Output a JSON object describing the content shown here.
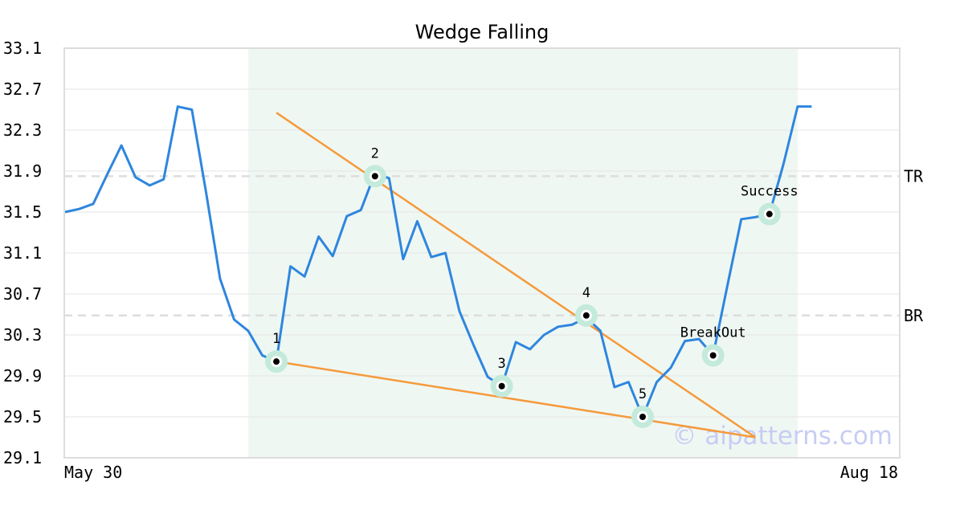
{
  "chart_data": {
    "type": "line",
    "title": "Wedge Falling",
    "watermark": "© aipatterns.com",
    "ylim": [
      29.1,
      33.1
    ],
    "yticks": [
      "33.1",
      "32.7",
      "32.3",
      "31.9",
      "31.5",
      "31.1",
      "30.7",
      "30.3",
      "29.9",
      "29.5",
      "29.1"
    ],
    "x_range": [
      0,
      56
    ],
    "x_tick_labels": [
      {
        "x": 0,
        "label": "May 30"
      },
      {
        "x": 56,
        "label": "Aug 18"
      }
    ],
    "pattern_region": [
      13,
      52
    ],
    "series": [
      {
        "color": "#2e86de",
        "y": [
          31.5,
          31.53,
          31.58,
          31.87,
          32.15,
          31.84,
          31.76,
          31.82,
          32.53,
          32.5,
          31.7,
          30.85,
          30.45,
          30.34,
          30.1,
          30.04,
          30.97,
          30.87,
          31.26,
          31.07,
          31.46,
          31.52,
          31.88,
          31.83,
          31.04,
          31.41,
          31.06,
          31.1,
          30.53,
          30.2,
          29.89,
          29.8,
          30.23,
          30.16,
          30.3,
          30.38,
          30.4,
          30.47,
          30.34,
          29.79,
          29.84,
          29.5,
          29.84,
          29.98,
          30.24,
          30.26,
          30.1,
          30.77,
          31.43,
          31.45,
          31.48,
          31.97,
          32.53,
          32.53
        ]
      }
    ],
    "horizontal_lines": [
      {
        "label": "TR",
        "y": 31.85,
        "color": "#dddddd"
      },
      {
        "label": "BR",
        "y": 30.49,
        "color": "#dddddd"
      }
    ],
    "trend_lines": [
      {
        "color": "#f59a3b",
        "points": [
          [
            15,
            32.47
          ],
          [
            49,
            29.3
          ]
        ]
      },
      {
        "color": "#f59a3b",
        "points": [
          [
            15,
            30.04
          ],
          [
            49,
            29.3
          ]
        ]
      }
    ],
    "points": [
      {
        "label": "1",
        "x": 15,
        "y": 30.04,
        "label_pos": "above"
      },
      {
        "label": "2",
        "x": 22,
        "y": 31.85,
        "label_pos": "above"
      },
      {
        "label": "3",
        "x": 31,
        "y": 29.8,
        "label_pos": "above"
      },
      {
        "label": "4",
        "x": 37,
        "y": 30.49,
        "label_pos": "above"
      },
      {
        "label": "5",
        "x": 41,
        "y": 29.5,
        "label_pos": "above"
      },
      {
        "label": "BreakOut",
        "x": 46,
        "y": 30.1,
        "label_pos": "above"
      },
      {
        "label": "Success",
        "x": 50,
        "y": 31.48,
        "label_pos": "above"
      }
    ]
  }
}
